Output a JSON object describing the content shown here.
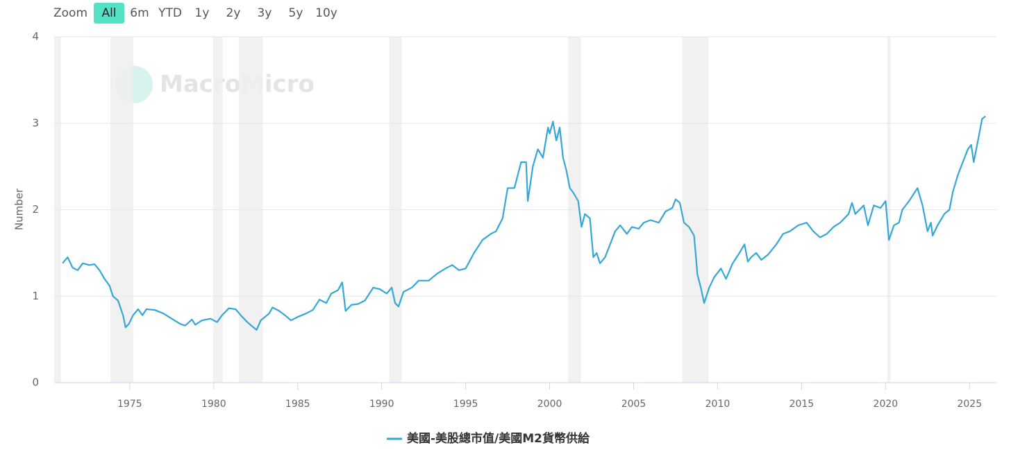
{
  "chart_data": {
    "type": "line",
    "range_selector": {
      "label": "Zoom",
      "buttons": [
        "All",
        "6m",
        "YTD",
        "1y",
        "2y",
        "3y",
        "5y",
        "10y"
      ],
      "selected": 0
    },
    "watermark": "MacroMicro",
    "y_label": "Number",
    "xlim": [
      1970.5,
      2026.6
    ],
    "xticks": [
      1975,
      1980,
      1985,
      1990,
      1995,
      2000,
      2005,
      2010,
      2015,
      2020,
      2025
    ],
    "ylim": [
      0,
      4
    ],
    "yticks": [
      0,
      1,
      2,
      3,
      4
    ],
    "grid": true,
    "recessions": [
      [
        1970.5,
        1970.9
      ],
      [
        1973.85,
        1975.2
      ],
      [
        1979.96,
        1980.54
      ],
      [
        1981.49,
        1982.93
      ],
      [
        1990.45,
        1991.2
      ],
      [
        2001.1,
        2001.86
      ],
      [
        2007.9,
        2009.46
      ],
      [
        2020.1,
        2020.3
      ]
    ],
    "x": [
      1971.0,
      1971.3,
      1971.6,
      1971.9,
      1972.2,
      1972.6,
      1972.9,
      1973.2,
      1973.5,
      1973.8,
      1974.0,
      1974.3,
      1974.6,
      1974.75,
      1974.95,
      1975.2,
      1975.5,
      1975.75,
      1976.0,
      1976.5,
      1977.0,
      1977.5,
      1978.0,
      1978.3,
      1978.7,
      1978.9,
      1979.3,
      1979.8,
      1980.2,
      1980.5,
      1980.9,
      1981.3,
      1981.7,
      1982.0,
      1982.3,
      1982.55,
      1982.8,
      1983.3,
      1983.5,
      1983.9,
      1984.3,
      1984.6,
      1985.0,
      1985.5,
      1985.9,
      1986.3,
      1986.7,
      1987.0,
      1987.4,
      1987.65,
      1987.85,
      1988.2,
      1988.6,
      1989.0,
      1989.5,
      1989.9,
      1990.3,
      1990.6,
      1990.8,
      1991.0,
      1991.3,
      1991.8,
      1992.2,
      1992.8,
      1993.3,
      1993.8,
      1994.2,
      1994.6,
      1995.0,
      1995.5,
      1996.0,
      1996.5,
      1996.8,
      1997.2,
      1997.5,
      1997.9,
      1998.3,
      1998.6,
      1998.7,
      1999.0,
      1999.3,
      1999.6,
      1999.9,
      2000.0,
      2000.2,
      2000.4,
      2000.6,
      2000.8,
      2001.0,
      2001.2,
      2001.4,
      2001.7,
      2001.9,
      2002.1,
      2002.4,
      2002.6,
      2002.8,
      2003.0,
      2003.3,
      2003.6,
      2003.9,
      2004.2,
      2004.6,
      2004.9,
      2005.3,
      2005.6,
      2006.0,
      2006.5,
      2006.9,
      2007.3,
      2007.5,
      2007.75,
      2008.0,
      2008.3,
      2008.6,
      2008.8,
      2009.0,
      2009.2,
      2009.5,
      2009.8,
      2010.2,
      2010.5,
      2010.9,
      2011.3,
      2011.6,
      2011.8,
      2012.0,
      2012.3,
      2012.6,
      2013.0,
      2013.5,
      2013.9,
      2014.3,
      2014.8,
      2015.3,
      2015.7,
      2016.1,
      2016.5,
      2016.9,
      2017.3,
      2017.8,
      2018.0,
      2018.2,
      2018.7,
      2018.95,
      2019.3,
      2019.7,
      2020.0,
      2020.2,
      2020.5,
      2020.8,
      2021.0,
      2021.4,
      2021.9,
      2022.2,
      2022.5,
      2022.7,
      2022.8,
      2023.1,
      2023.5,
      2023.8,
      2024.0,
      2024.3,
      2024.6,
      2024.9,
      2025.1,
      2025.25,
      2025.5,
      2025.75,
      2025.95
    ],
    "series": [
      {
        "name": "美國-美股總市值/美國M2貨幣供給",
        "color": "#34a6d8",
        "values": [
          1.38,
          1.45,
          1.33,
          1.3,
          1.38,
          1.36,
          1.37,
          1.3,
          1.2,
          1.12,
          1.0,
          0.95,
          0.78,
          0.64,
          0.68,
          0.78,
          0.85,
          0.78,
          0.85,
          0.84,
          0.8,
          0.74,
          0.68,
          0.66,
          0.73,
          0.67,
          0.72,
          0.74,
          0.7,
          0.78,
          0.86,
          0.85,
          0.76,
          0.7,
          0.65,
          0.61,
          0.72,
          0.8,
          0.87,
          0.83,
          0.77,
          0.72,
          0.76,
          0.8,
          0.84,
          0.96,
          0.92,
          1.03,
          1.07,
          1.16,
          0.83,
          0.9,
          0.91,
          0.95,
          1.1,
          1.08,
          1.03,
          1.1,
          0.92,
          0.88,
          1.05,
          1.1,
          1.18,
          1.18,
          1.26,
          1.32,
          1.36,
          1.3,
          1.32,
          1.5,
          1.65,
          1.72,
          1.75,
          1.9,
          2.25,
          2.25,
          2.55,
          2.55,
          2.1,
          2.5,
          2.7,
          2.6,
          2.95,
          2.88,
          3.02,
          2.8,
          2.95,
          2.6,
          2.45,
          2.25,
          2.2,
          2.1,
          1.8,
          1.95,
          1.9,
          1.45,
          1.5,
          1.38,
          1.45,
          1.6,
          1.75,
          1.82,
          1.72,
          1.8,
          1.78,
          1.85,
          1.88,
          1.85,
          1.98,
          2.02,
          2.12,
          2.08,
          1.85,
          1.8,
          1.7,
          1.25,
          1.1,
          0.92,
          1.1,
          1.22,
          1.32,
          1.2,
          1.38,
          1.5,
          1.6,
          1.4,
          1.45,
          1.5,
          1.42,
          1.48,
          1.6,
          1.72,
          1.75,
          1.82,
          1.85,
          1.75,
          1.68,
          1.72,
          1.8,
          1.85,
          1.95,
          2.08,
          1.95,
          2.05,
          1.82,
          2.05,
          2.02,
          2.1,
          1.65,
          1.82,
          1.85,
          2.0,
          2.1,
          2.25,
          2.05,
          1.75,
          1.85,
          1.7,
          1.82,
          1.95,
          2.0,
          2.2,
          2.4,
          2.55,
          2.7,
          2.75,
          2.55,
          2.8,
          3.05,
          3.08
        ]
      }
    ]
  }
}
